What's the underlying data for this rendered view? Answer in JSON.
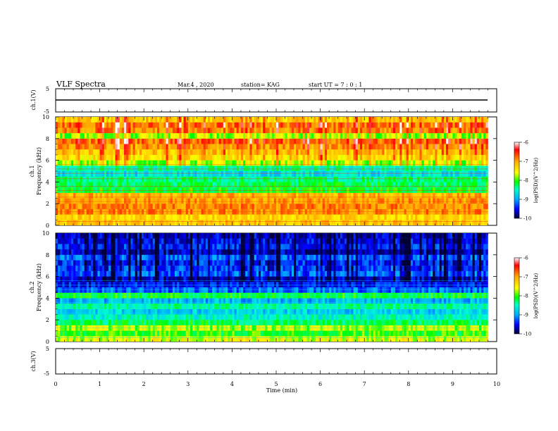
{
  "header": {
    "title": "VLF Spectra",
    "date": "Mar.4 , 2020",
    "station": "station= KAG",
    "start": "start UT = 7 : 0 : 1"
  },
  "panels": {
    "ch1v": {
      "ylabel": "ch.1(V)",
      "ytick_top": "5",
      "ytick_bottom": "-5"
    },
    "ch1": {
      "ylabel": "ch.1",
      "ylabel2": "Frequency (kHz)"
    },
    "ch2": {
      "ylabel": "ch.2",
      "ylabel2": "Frequency (kHz)"
    },
    "ch3v": {
      "ylabel": "ch.3(V)",
      "ytick_top": "5",
      "ytick_bottom": "-5"
    }
  },
  "colorbar": {
    "label": "log(PSD)(V^2/Hz)",
    "ticks": [
      "-6",
      "-7",
      "-8",
      "-9",
      "-10"
    ],
    "colors": [
      "#ffffff",
      "#ff0000",
      "#ffaa00",
      "#ffff00",
      "#00ff00",
      "#00ffcc",
      "#00aaff",
      "#0000ff",
      "#000033"
    ]
  },
  "chart_data": [
    {
      "type": "line",
      "ylabel": "ch.1(V)",
      "ylim": [
        -5,
        5
      ],
      "x": [
        0,
        10
      ],
      "y": [
        0,
        0
      ]
    },
    {
      "type": "heatmap",
      "ylabel": "ch.1 Frequency (kHz)",
      "ylim": [
        0,
        10
      ],
      "yticks": [
        0,
        2,
        4,
        6,
        8,
        10
      ],
      "xlim": [
        0,
        10
      ],
      "data_end_min": 9.8,
      "frequency_bands_kHz": [
        0,
        0.5,
        1,
        1.5,
        2,
        2.5,
        3,
        3.5,
        4,
        4.5,
        5,
        5.5,
        6,
        6.5,
        7,
        7.5,
        8,
        8.5,
        9,
        9.5,
        10
      ],
      "band_log_psd": [
        -7.2,
        -7.3,
        -6.9,
        -6.9,
        -7.0,
        -7.1,
        -8.1,
        -8.2,
        -8.3,
        -8.7,
        -8.4,
        -7.8,
        -7.4,
        -7.2,
        -7.0,
        -6.8,
        -7.8,
        -6.9,
        -6.8,
        -7.3
      ],
      "colorbar_range": [
        -10,
        -6
      ]
    },
    {
      "type": "heatmap",
      "ylabel": "ch.2 Frequency (kHz)",
      "ylim": [
        0,
        10
      ],
      "yticks": [
        0,
        2,
        4,
        6,
        8,
        10
      ],
      "xlim": [
        0,
        10
      ],
      "data_end_min": 9.8,
      "frequency_bands_kHz": [
        0,
        0.5,
        1,
        1.5,
        2,
        2.5,
        3,
        3.5,
        4,
        4.5,
        5,
        5.5,
        6,
        6.5,
        7,
        7.5,
        8,
        8.5,
        9,
        9.5,
        10
      ],
      "band_log_psd": [
        -7.6,
        -8.0,
        -7.7,
        -8.2,
        -8.5,
        -8.8,
        -8.4,
        -8.9,
        -8.1,
        -9.2,
        -9.5,
        -9.6,
        -9.2,
        -9.3,
        -9.4,
        -9.2,
        -9.6,
        -9.4,
        -9.5,
        -9.6
      ],
      "colorbar_range": [
        -10,
        -6
      ]
    },
    {
      "type": "line",
      "ylabel": "ch.3(V)",
      "ylim": [
        -5,
        5
      ],
      "xlabel": "Time (min)",
      "xticks": [
        0,
        1,
        2,
        3,
        4,
        5,
        6,
        7,
        8,
        9,
        10
      ],
      "x": [],
      "y": []
    }
  ]
}
